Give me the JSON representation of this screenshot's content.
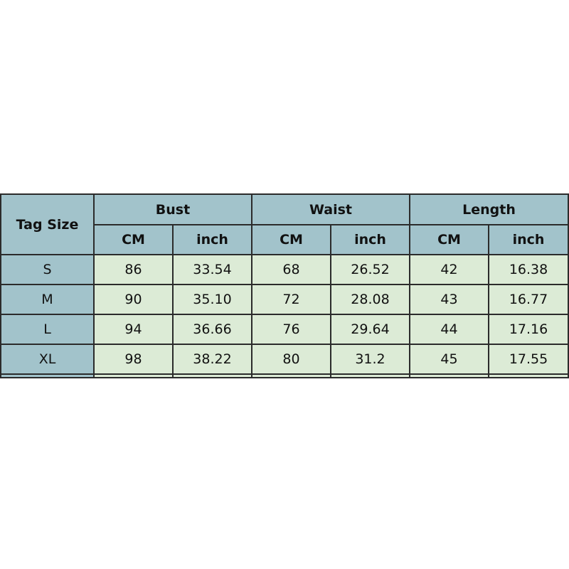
{
  "table": {
    "row_header": "Tag Size",
    "groups": [
      "Bust",
      "Waist",
      "Length"
    ],
    "units": [
      "CM",
      "inch",
      "CM",
      "inch",
      "CM",
      "inch"
    ],
    "rows": [
      {
        "size": "S",
        "values": [
          "86",
          "33.54",
          "68",
          "26.52",
          "42",
          "16.38"
        ]
      },
      {
        "size": "M",
        "values": [
          "90",
          "35.10",
          "72",
          "28.08",
          "43",
          "16.77"
        ]
      },
      {
        "size": "L",
        "values": [
          "94",
          "36.66",
          "76",
          "29.64",
          "44",
          "17.16"
        ]
      },
      {
        "size": "XL",
        "values": [
          "98",
          "38.22",
          "80",
          "31.2",
          "45",
          "17.55"
        ]
      }
    ]
  },
  "colors": {
    "header_bg": "#a2c3cb",
    "cell_bg": "#dcebd6",
    "border": "#2b2b2b"
  }
}
